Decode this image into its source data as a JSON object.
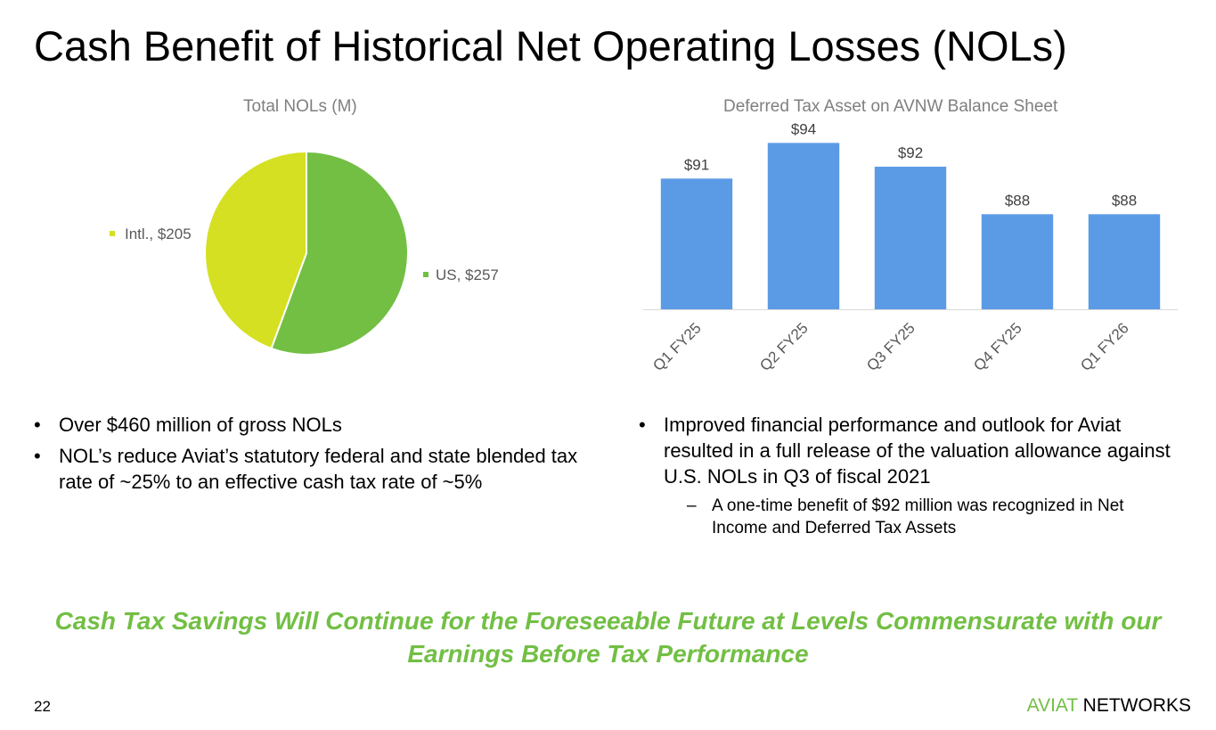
{
  "slide": {
    "title": "Cash Benefit of Historical Net Operating Losses (NOLs)",
    "page_number": "22",
    "brand": {
      "part1": "AVIAT",
      "part2": " NETWORKS"
    },
    "tagline": "Cash Tax Savings Will Continue for the Foreseeable Future at Levels Commensurate with our Earnings Before Tax Performance",
    "colors": {
      "accent": "#72bf44",
      "bar": "#5b9be6",
      "pie_us": "#72bf44",
      "pie_intl": "#d4e021",
      "muted": "#7f7f7f"
    }
  },
  "left_bullets": [
    "Over $460 million of gross NOLs",
    "NOL’s reduce Aviat’s statutory federal and state blended tax rate of ~25% to an effective cash tax rate of ~5%"
  ],
  "right_bullets": {
    "main": "Improved financial performance and outlook for Aviat resulted in a full release of the valuation allowance against U.S. NOLs in Q3 of fiscal 2021",
    "sub": "A one-time benefit of $92 million was recognized in Net Income and Deferred Tax Assets"
  },
  "chart_data": [
    {
      "type": "pie",
      "title": "Total NOLs (M)",
      "slices": [
        {
          "name": "US",
          "value": 257,
          "label": "US, $257",
          "color": "#72bf44"
        },
        {
          "name": "Intl.",
          "value": 205,
          "label": "Intl., $205",
          "color": "#d4e021"
        }
      ]
    },
    {
      "type": "bar",
      "title": "Deferred Tax Asset on AVNW Balance Sheet",
      "categories": [
        "Q1 FY25",
        "Q2 FY25",
        "Q3 FY25",
        "Q4 FY25",
        "Q1 FY26"
      ],
      "values": [
        91,
        94,
        92,
        88,
        88
      ],
      "data_labels": [
        "$91",
        "$94",
        "$92",
        "$88",
        "$88"
      ],
      "ylim": [
        80,
        95
      ],
      "grid": false,
      "color": "#5b9be6"
    }
  ]
}
